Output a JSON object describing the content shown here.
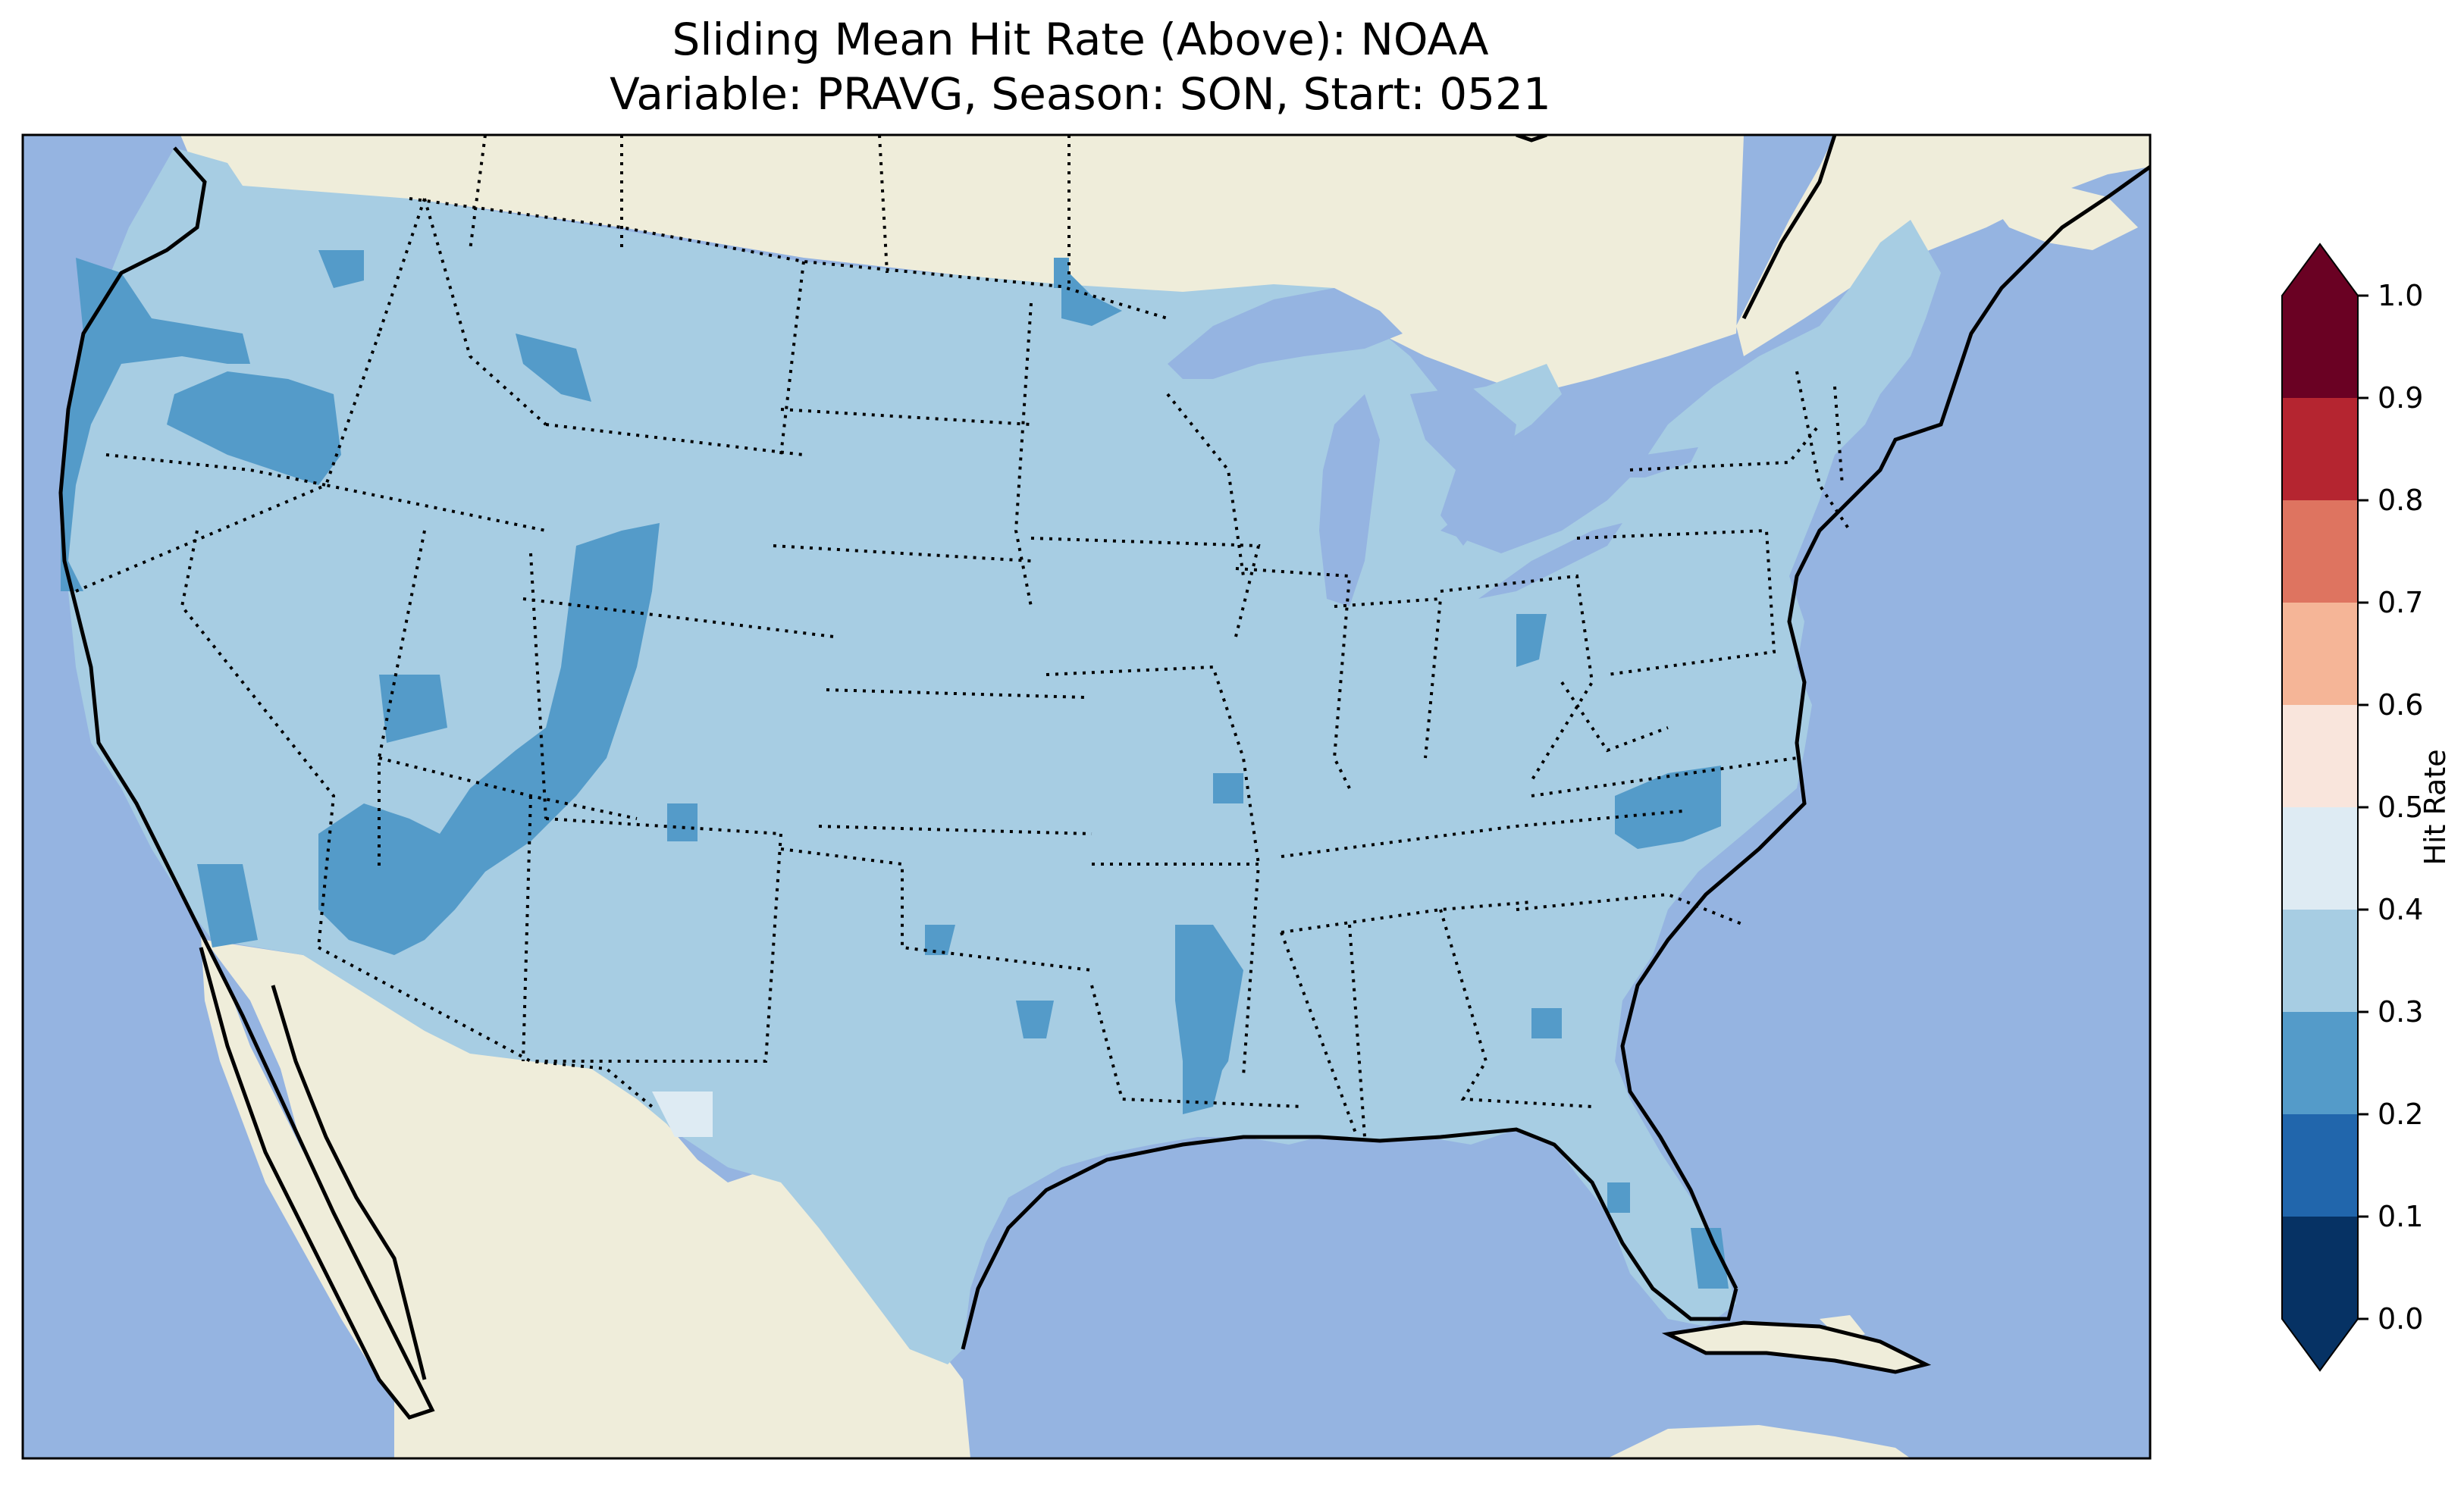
{
  "title": {
    "line1": "Sliding Mean Hit Rate (Above): NOAA",
    "line2": "Variable: PRAVG, Season: SON, Start: 0521"
  },
  "colors": {
    "ocean": "#95b4e1",
    "land": "#efedda",
    "conus_base": "#a7cde3",
    "low_class": "#549bc9",
    "high_pocket": "#deebf3"
  },
  "colorbar": {
    "label": "Hit Rate",
    "ticks": [
      "0.0",
      "0.1",
      "0.2",
      "0.3",
      "0.4",
      "0.5",
      "0.6",
      "0.7",
      "0.8",
      "0.9",
      "1.0"
    ],
    "bins": [
      {
        "from": 0.0,
        "to": 0.1,
        "color": "#063264"
      },
      {
        "from": 0.1,
        "to": 0.2,
        "color": "#2166ac"
      },
      {
        "from": 0.2,
        "to": 0.3,
        "color": "#549bc9"
      },
      {
        "from": 0.3,
        "to": 0.4,
        "color": "#a7cde3"
      },
      {
        "from": 0.4,
        "to": 0.5,
        "color": "#deebf3"
      },
      {
        "from": 0.5,
        "to": 0.6,
        "color": "#f9e5dc"
      },
      {
        "from": 0.6,
        "to": 0.7,
        "color": "#f5b597"
      },
      {
        "from": 0.7,
        "to": 0.8,
        "color": "#de7460"
      },
      {
        "from": 0.8,
        "to": 0.9,
        "color": "#b52530"
      },
      {
        "from": 0.9,
        "to": 1.0,
        "color": "#6a0123"
      }
    ],
    "extend_under_color": "#063264",
    "extend_over_color": "#6a0123"
  }
}
